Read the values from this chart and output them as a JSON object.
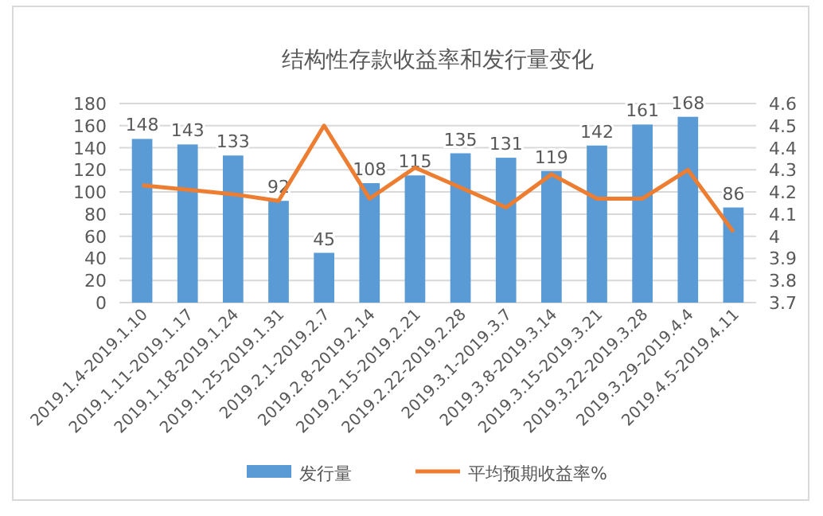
{
  "chart_data": {
    "type": "bar",
    "title": "结构性存款收益率和发行量变化",
    "categories": [
      "2019.1.4-2019.1.10",
      "2019.1.11-2019.1.17",
      "2019.1.18-2019.1.24",
      "2019.1.25-2019.1.31",
      "2019.2.1-2019.2.7",
      "2019.2.8-2019.2.14",
      "2019.2.15-2019.2.21",
      "2019.2.22-2019.2.28",
      "2019.3.1-2019.3.7",
      "2019.3.8-2019.3.14",
      "2019.3.15-2019.3.21",
      "2019.3.22-2019.3.28",
      "2019.3.29-2019.4.4",
      "2019.4.5-2019.4.11"
    ],
    "series": [
      {
        "name": "发行量",
        "color": "#5b9bd5",
        "data_labels": true,
        "values": [
          148,
          143,
          133,
          92,
          45,
          108,
          115,
          135,
          131,
          119,
          142,
          161,
          168,
          86
        ]
      },
      {
        "name": "平均预期收益率%",
        "type": "line",
        "axis": "y2",
        "color": "#ed7d31",
        "marker": "none",
        "values": [
          4.23,
          4.21,
          4.19,
          4.16,
          4.5,
          4.17,
          4.31,
          4.22,
          4.13,
          4.28,
          4.17,
          4.17,
          4.3,
          4.02
        ]
      }
    ],
    "ylim": [
      0,
      180
    ],
    "yticks": [
      0,
      20,
      40,
      60,
      80,
      100,
      120,
      140,
      160,
      180
    ],
    "y2lim": [
      3.7,
      4.6
    ],
    "y2ticks": [
      3.7,
      3.8,
      3.9,
      4,
      4.1,
      4.2,
      4.3,
      4.4,
      4.5,
      4.6
    ],
    "grid": "y",
    "legend": "bottom"
  }
}
